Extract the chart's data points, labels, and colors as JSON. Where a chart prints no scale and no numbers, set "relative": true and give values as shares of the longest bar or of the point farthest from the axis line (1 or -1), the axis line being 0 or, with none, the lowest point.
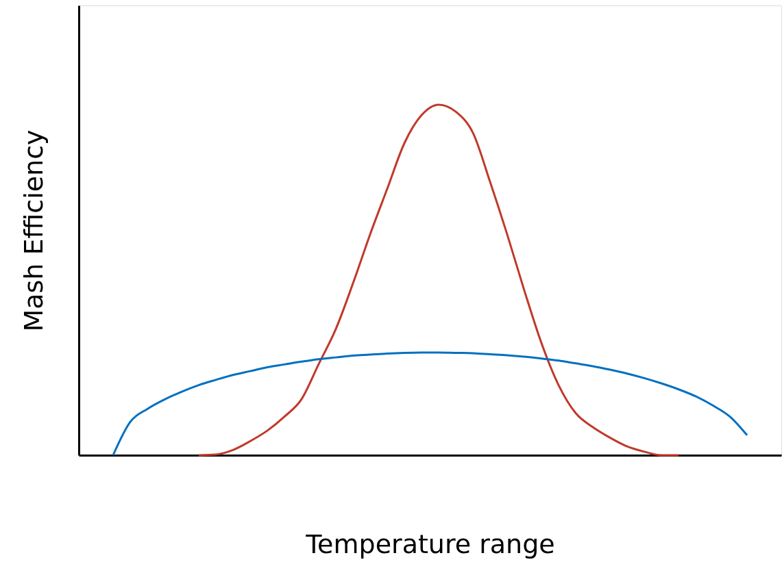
{
  "chart_data": {
    "type": "line",
    "relative": true,
    "xlabel": "Temperature range",
    "ylabel": "Mash Efficiency",
    "categories": [
      null,
      null,
      null,
      null,
      null,
      null,
      null,
      null,
      null,
      null,
      null,
      null,
      null,
      null,
      null,
      null,
      null,
      null,
      null,
      null,
      null,
      null,
      null,
      null,
      null,
      null,
      null,
      null,
      null,
      null,
      null,
      null,
      null,
      null,
      null,
      null,
      null,
      null,
      null,
      null,
      null,
      null
    ],
    "series": [
      {
        "color": "#c0392b",
        "values": [
          null,
          null,
          null,
          null,
          null,
          null,
          null,
          0,
          0.002,
          0.015,
          0.04,
          0.07,
          0.11,
          0.16,
          0.26,
          0.36,
          0.49,
          0.63,
          0.76,
          0.89,
          0.97,
          1.0,
          0.98,
          0.92,
          0.78,
          0.63,
          0.47,
          0.32,
          0.2,
          0.12,
          0.08,
          0.05,
          0.025,
          0.01,
          0,
          0,
          null,
          null,
          null,
          null,
          null,
          null
        ]
      },
      {
        "color": "#0070c0",
        "values": [
          null,
          null,
          0,
          0.095,
          0.132,
          0.159,
          0.181,
          0.2,
          0.215,
          0.229,
          0.24,
          0.251,
          0.259,
          0.267,
          0.274,
          0.279,
          0.284,
          0.287,
          0.29,
          0.292,
          0.293,
          0.293,
          0.292,
          0.291,
          0.288,
          0.285,
          0.281,
          0.276,
          0.27,
          0.262,
          0.254,
          0.244,
          0.233,
          0.22,
          0.205,
          0.188,
          0.168,
          0.142,
          0.11,
          0.057,
          null,
          null
        ]
      }
    ],
    "grid": false,
    "tick_labels": false
  }
}
